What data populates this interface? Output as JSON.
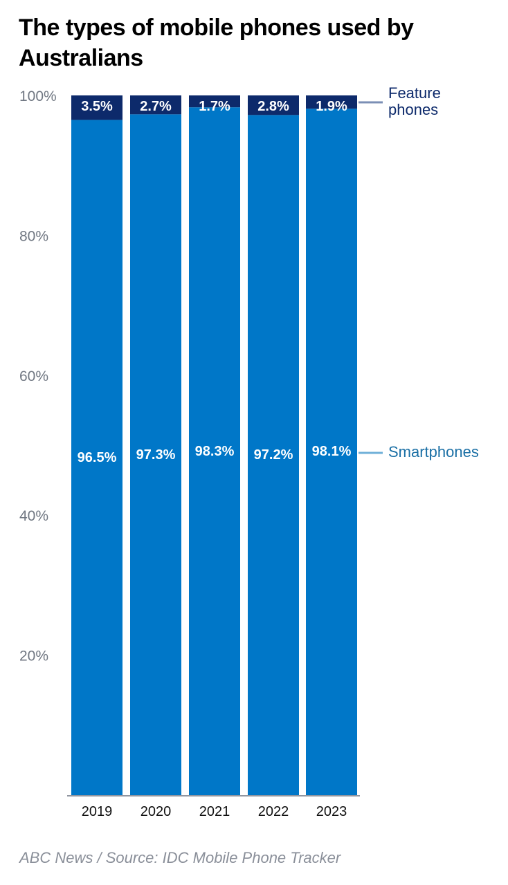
{
  "title": "The types of mobile phones used by Australians",
  "source": "ABC News / Source: IDC Mobile Phone Tracker",
  "chart_data": {
    "type": "bar",
    "stacked": true,
    "categories": [
      "2019",
      "2020",
      "2021",
      "2022",
      "2023"
    ],
    "series": [
      {
        "name": "Smartphones",
        "values": [
          96.5,
          97.3,
          98.3,
          97.2,
          98.1
        ],
        "labels": [
          "96.5%",
          "97.3%",
          "98.3%",
          "97.2%",
          "98.1%"
        ],
        "color": "#0077c8"
      },
      {
        "name": "Feature phones",
        "values": [
          3.5,
          2.7,
          1.7,
          2.8,
          1.9
        ],
        "labels": [
          "3.5%",
          "2.7%",
          "1.7%",
          "2.8%",
          "1.9%"
        ],
        "color": "#0d2a6b"
      }
    ],
    "ylim": [
      0,
      100
    ],
    "yticks": [
      {
        "value": 20,
        "label": "20%"
      },
      {
        "value": 40,
        "label": "40%"
      },
      {
        "value": 60,
        "label": "60%"
      },
      {
        "value": 80,
        "label": "80%"
      },
      {
        "value": 100,
        "label": "100%"
      }
    ],
    "legend": [
      {
        "label_lines": [
          "Feature",
          "phones"
        ],
        "color": "#0d2a6b",
        "line_color": "#7b8fb5"
      },
      {
        "label_lines": [
          "Smartphones"
        ],
        "color": "#1a6fa5",
        "line_color": "#6fb0d8"
      }
    ],
    "grid": false,
    "legend_placement": "right"
  }
}
